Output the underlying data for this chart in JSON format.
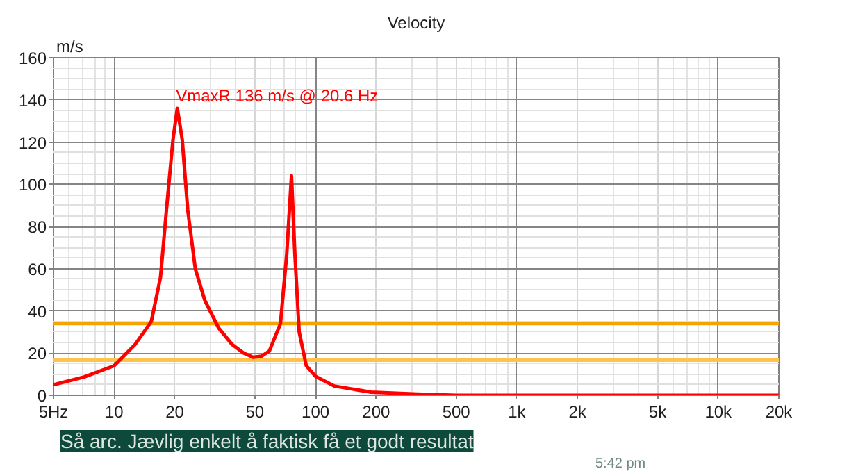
{
  "chart_data": {
    "type": "line",
    "title": "Velocity",
    "ylabel": "m/s",
    "series": [
      {
        "color": "#ff0000",
        "x": [
          5,
          7.1,
          10,
          12.7,
          15.3,
          17,
          18.2,
          19.6,
          20.6,
          21.8,
          23.2,
          25.3,
          28.2,
          33,
          38.6,
          44,
          49,
          54,
          59,
          67,
          72,
          76,
          79,
          83,
          90,
          100,
          124,
          189,
          320,
          500,
          1000,
          2000,
          5000,
          10000,
          20000
        ],
        "values": [
          5,
          8.7,
          14,
          24,
          35,
          56,
          88,
          121,
          136,
          121,
          88,
          60,
          45,
          32,
          24,
          20,
          18,
          18.5,
          21,
          34,
          67,
          104,
          67,
          30,
          14,
          9,
          4.4,
          1.5,
          0.6,
          0,
          0,
          0,
          0,
          0,
          0
        ]
      }
    ],
    "xlim": [
      5,
      20000
    ],
    "ylim": [
      0,
      160
    ],
    "xticks": [
      {
        "value": 5,
        "label": "5Hz"
      },
      10,
      20,
      50,
      100,
      200,
      500,
      {
        "value": 1000,
        "label": "1k"
      },
      {
        "value": 2000,
        "label": "2k"
      },
      {
        "value": 5000,
        "label": "5k"
      },
      {
        "value": 10000,
        "label": "10k"
      },
      {
        "value": 20000,
        "label": "20k"
      }
    ],
    "yticks": [
      0,
      20,
      40,
      60,
      80,
      100,
      120,
      140,
      160
    ],
    "log": "x",
    "grid": true,
    "ref_lines": [
      {
        "axis": "y",
        "value": 34,
        "color": "#f5a300"
      },
      {
        "axis": "y",
        "value": 16.6,
        "color": "#ffc24a"
      }
    ],
    "annotations": [
      {
        "text": "VmaxR 136 m/s @ 20.6 Hz",
        "x": 20.6,
        "y": 136
      },
      "Så arc. Jævlig enkelt å faktisk få et godt resultat",
      "5:42 pm"
    ]
  }
}
